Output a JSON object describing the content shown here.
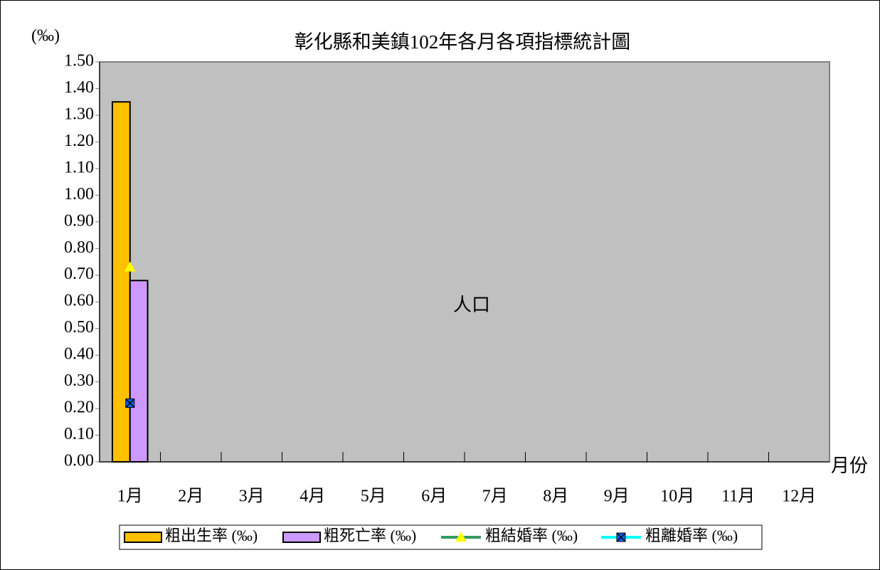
{
  "chart_data": {
    "type": "bar_line",
    "title": "彰化縣和美鎮102年各月各項指標統計圖",
    "y_axis_label": "(‰)",
    "x_axis_label": "月份",
    "annotation": "人口",
    "categories": [
      "1月",
      "2月",
      "3月",
      "4月",
      "5月",
      "6月",
      "7月",
      "8月",
      "9月",
      "10月",
      "11月",
      "12月"
    ],
    "series": [
      {
        "name": "粗出生率 (‰)",
        "kind": "bar",
        "color": "#ffc000",
        "values": [
          1.35,
          null,
          null,
          null,
          null,
          null,
          null,
          null,
          null,
          null,
          null,
          null
        ]
      },
      {
        "name": "粗死亡率 (‰)",
        "kind": "bar",
        "color": "#cc99ff",
        "values": [
          0.68,
          null,
          null,
          null,
          null,
          null,
          null,
          null,
          null,
          null,
          null,
          null
        ]
      },
      {
        "name": "粗結婚率 (‰)",
        "kind": "line",
        "color": "#339966",
        "marker": "triangle",
        "marker_color": "#ffff00",
        "values": [
          0.73,
          null,
          null,
          null,
          null,
          null,
          null,
          null,
          null,
          null,
          null,
          null
        ]
      },
      {
        "name": "粗離婚率 (‰)",
        "kind": "line",
        "color": "#00ffff",
        "marker": "cross-square",
        "marker_color": "#0066ff",
        "values": [
          0.22,
          null,
          null,
          null,
          null,
          null,
          null,
          null,
          null,
          null,
          null,
          null
        ]
      }
    ],
    "ylim": [
      0,
      1.5
    ],
    "yticks": [
      {
        "value": 0,
        "label": "0.00"
      },
      {
        "value": 0.1,
        "label": "0.10"
      },
      {
        "value": 0.2,
        "label": "0.20"
      },
      {
        "value": 0.3,
        "label": "0.30"
      },
      {
        "value": 0.4,
        "label": "0.40"
      },
      {
        "value": 0.5,
        "label": "0.50"
      },
      {
        "value": 0.6,
        "label": "0.60"
      },
      {
        "value": 0.7,
        "label": "0.70"
      },
      {
        "value": 0.8,
        "label": "0.80"
      },
      {
        "value": 0.9,
        "label": "0.90"
      },
      {
        "value": 1.0,
        "label": "1.00"
      },
      {
        "value": 1.1,
        "label": "1.10"
      },
      {
        "value": 1.2,
        "label": "1.20"
      },
      {
        "value": 1.3,
        "label": "1.30"
      },
      {
        "value": 1.4,
        "label": "1.40"
      },
      {
        "value": 1.5,
        "label": "1.50"
      }
    ],
    "plot_background": "#c0c0c0",
    "grid": false
  }
}
